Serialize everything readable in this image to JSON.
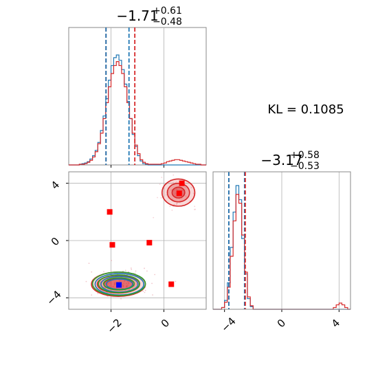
{
  "chart_data": [
    {
      "type": "histogram",
      "panel": "x-marginal",
      "title": {
        "main": "−1.71",
        "sup": "+0.61",
        "sub": "−0.48"
      },
      "xlim": [
        -3.6,
        1.6
      ],
      "bins": {
        "start": -3.6,
        "width": 0.1
      },
      "series": [
        {
          "color": "#1f77b4",
          "values": [
            0,
            0,
            0,
            0,
            1,
            2,
            3,
            5,
            9,
            14,
            22,
            34,
            52,
            74,
            100,
            128,
            150,
            162,
            166,
            158,
            144,
            122,
            96,
            70,
            46,
            28,
            14,
            6,
            2,
            1,
            0,
            0,
            0,
            0,
            0,
            0,
            0,
            0,
            0,
            0,
            0,
            0,
            0,
            0,
            0,
            0,
            0,
            0,
            0,
            0,
            0,
            0
          ]
        },
        {
          "color": "#d62728",
          "values": [
            0,
            0,
            0,
            0,
            1,
            1,
            2,
            4,
            7,
            12,
            20,
            32,
            48,
            70,
            94,
            118,
            138,
            150,
            156,
            150,
            138,
            118,
            94,
            70,
            48,
            30,
            17,
            8,
            4,
            2,
            1,
            1,
            1,
            1,
            1,
            2,
            3,
            5,
            6,
            7,
            8,
            8,
            7,
            6,
            5,
            4,
            3,
            2,
            1,
            1,
            0,
            0
          ]
        }
      ],
      "vlines": [
        {
          "x": -2.19,
          "color": "#d62728"
        },
        {
          "x": -2.19,
          "color": "#1f77b4"
        },
        {
          "x": -1.32,
          "color": "#1f77b4"
        },
        {
          "x": -1.1,
          "color": "#d62728"
        }
      ]
    },
    {
      "type": "histogram",
      "panel": "y-marginal",
      "title": {
        "main": "−3.17",
        "sup": "+0.58",
        "sub": "−0.53"
      },
      "xlim": [
        -4.8,
        4.8
      ],
      "xticks": [
        -4,
        0,
        4
      ],
      "bins": {
        "start": -4.8,
        "width": 0.2
      },
      "series": [
        {
          "color": "#1f77b4",
          "values": [
            0,
            0,
            0,
            2,
            10,
            30,
            70,
            110,
            140,
            124,
            80,
            40,
            12,
            3,
            0,
            0,
            0,
            0,
            0,
            0,
            0,
            0,
            0,
            0,
            0,
            0,
            0,
            0,
            0,
            0,
            0,
            0,
            0,
            0,
            0,
            0,
            0,
            0,
            0,
            0,
            0,
            0,
            0,
            0,
            0,
            0,
            0,
            0
          ]
        },
        {
          "color": "#d62728",
          "values": [
            0,
            0,
            0,
            2,
            8,
            25,
            60,
            100,
            130,
            120,
            84,
            42,
            14,
            4,
            0,
            0,
            0,
            0,
            0,
            0,
            0,
            0,
            0,
            0,
            0,
            0,
            0,
            0,
            0,
            0,
            0,
            0,
            0,
            0,
            0,
            0,
            0,
            0,
            0,
            0,
            0,
            0,
            2,
            5,
            7,
            5,
            2,
            0
          ]
        }
      ],
      "vlines": [
        {
          "x": -3.7,
          "color": "#d62728"
        },
        {
          "x": -3.7,
          "color": "#1f77b4"
        },
        {
          "x": -2.6,
          "color": "#1f77b4"
        },
        {
          "x": -2.55,
          "color": "#d62728"
        }
      ]
    },
    {
      "type": "scatter",
      "panel": "joint",
      "xlim": [
        -3.6,
        1.6
      ],
      "ylim": [
        -4.8,
        4.8
      ],
      "xticks": [
        -2,
        0
      ],
      "yticks": [
        -4,
        0,
        4
      ],
      "contours": [
        {
          "color": "#d62728",
          "fill": "#d62728",
          "cx": -1.72,
          "cy": -3.05,
          "rx": [
            1.02,
            0.8,
            0.55
          ],
          "ry": [
            0.85,
            0.62,
            0.4
          ]
        },
        {
          "color": "#1f77b4",
          "fill": null,
          "cx": -1.68,
          "cy": -3.05,
          "rx": [
            0.92,
            0.7,
            0.5
          ],
          "ry": [
            0.75,
            0.55,
            0.36
          ]
        },
        {
          "color": "#2ca02c",
          "fill": null,
          "cx": -1.7,
          "cy": -3.02,
          "rx": [
            1.0,
            0.78,
            0.58
          ],
          "ry": [
            0.82,
            0.62,
            0.42
          ]
        },
        {
          "color": "#d62728",
          "fill": "#d62728",
          "cx": 0.55,
          "cy": 3.35,
          "rx": [
            0.62,
            0.42,
            0.24
          ],
          "ry": [
            0.95,
            0.65,
            0.38
          ]
        }
      ],
      "points": {
        "red": [
          {
            "x": 0.68,
            "y": 4.0
          },
          {
            "x": 0.58,
            "y": 3.3
          },
          {
            "x": -2.05,
            "y": 2.0
          },
          {
            "x": -1.95,
            "y": -0.3
          },
          {
            "x": -0.55,
            "y": -0.15
          },
          {
            "x": 0.28,
            "y": -3.05
          }
        ],
        "blue": [
          {
            "x": -1.7,
            "y": -3.1
          }
        ]
      }
    }
  ],
  "kl_text": "KL = 0.1085",
  "tick_labels": {
    "joint_x": [
      "−2",
      "0"
    ],
    "joint_y": [
      "−4",
      "0",
      "4"
    ],
    "ymarg_x": [
      "−4",
      "0",
      "4"
    ]
  },
  "colors": {
    "red": "#d62728",
    "blue": "#1f77b4",
    "green": "#2ca02c",
    "frame": "#888888",
    "grid": "#b0b0b0"
  }
}
